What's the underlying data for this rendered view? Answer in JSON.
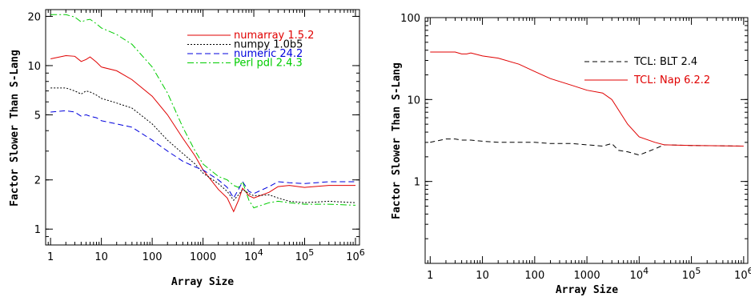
{
  "chart_data": [
    {
      "type": "line",
      "xlabel": "Array Size",
      "ylabel": "Factor Slower Than S-Lang",
      "xscale": "log",
      "yscale": "log",
      "xlim": [
        0.8,
        1200000
      ],
      "ylim": [
        0.8,
        22
      ],
      "x_ticks": [
        {
          "value": 1,
          "label": "1",
          "sup": ""
        },
        {
          "value": 10,
          "label": "10",
          "sup": ""
        },
        {
          "value": 100,
          "label": "100",
          "sup": ""
        },
        {
          "value": 1000,
          "label": "1000",
          "sup": ""
        },
        {
          "value": 10000,
          "label": "10",
          "sup": "4"
        },
        {
          "value": 100000,
          "label": "10",
          "sup": "5"
        },
        {
          "value": 1000000,
          "label": "10",
          "sup": "6"
        }
      ],
      "y_ticks": [
        {
          "value": 1,
          "label": "1"
        },
        {
          "value": 2,
          "label": "2"
        },
        {
          "value": 5,
          "label": "5"
        },
        {
          "value": 10,
          "label": "10"
        },
        {
          "value": 20,
          "label": "20"
        }
      ],
      "legend_position": "top-right",
      "series": [
        {
          "name": "numarray 1.5.2",
          "color": "#e00000",
          "dash": "",
          "x": [
            1,
            2,
            3,
            4,
            5,
            6,
            8,
            10,
            20,
            40,
            100,
            200,
            400,
            700,
            1000,
            2000,
            3000,
            4000,
            5000,
            6000,
            8000,
            10000,
            20000,
            30000,
            50000,
            100000,
            300000,
            1000000
          ],
          "y": [
            11,
            11.5,
            11.4,
            10.6,
            10.9,
            11.3,
            10.5,
            9.8,
            9.3,
            8.2,
            6.5,
            5.0,
            3.6,
            2.8,
            2.3,
            1.75,
            1.55,
            1.28,
            1.5,
            1.78,
            1.6,
            1.55,
            1.68,
            1.82,
            1.85,
            1.8,
            1.85,
            1.85
          ]
        },
        {
          "name": "numpy 1.0b5",
          "color": "#000000",
          "dash": "2,2",
          "x": [
            1,
            2,
            3,
            4,
            5,
            6,
            8,
            10,
            20,
            40,
            100,
            200,
            400,
            700,
            1000,
            2000,
            3000,
            4000,
            5000,
            6000,
            8000,
            10000,
            20000,
            30000,
            50000,
            100000,
            300000,
            1000000
          ],
          "y": [
            7.3,
            7.3,
            7.0,
            6.7,
            7.0,
            6.9,
            6.6,
            6.3,
            5.9,
            5.5,
            4.4,
            3.5,
            2.9,
            2.5,
            2.2,
            1.9,
            1.7,
            1.5,
            1.62,
            1.75,
            1.65,
            1.6,
            1.62,
            1.55,
            1.48,
            1.45,
            1.48,
            1.45
          ]
        },
        {
          "name": "numeric 24.2",
          "color": "#0000dd",
          "dash": "7,4",
          "x": [
            1,
            2,
            3,
            4,
            5,
            6,
            8,
            10,
            20,
            40,
            100,
            200,
            400,
            700,
            1000,
            2000,
            3000,
            4000,
            5000,
            6000,
            8000,
            10000,
            20000,
            30000,
            50000,
            100000,
            300000,
            1000000
          ],
          "y": [
            5.2,
            5.3,
            5.2,
            4.9,
            5.0,
            4.9,
            4.8,
            4.6,
            4.4,
            4.2,
            3.5,
            3.0,
            2.6,
            2.4,
            2.3,
            2.0,
            1.8,
            1.55,
            1.75,
            1.95,
            1.7,
            1.65,
            1.82,
            1.95,
            1.92,
            1.9,
            1.95,
            1.95
          ]
        },
        {
          "name": "Perl pdl 2.4.3",
          "color": "#00cc00",
          "dash": "8,3,2,3",
          "x": [
            1,
            2,
            3,
            4,
            5,
            6,
            8,
            10,
            20,
            40,
            100,
            200,
            400,
            700,
            1000,
            2000,
            3000,
            4000,
            5000,
            6000,
            8000,
            10000,
            20000,
            30000,
            50000,
            100000,
            300000,
            1000000
          ],
          "y": [
            20.5,
            20.5,
            19.8,
            18.5,
            19.0,
            19.2,
            18.0,
            17.0,
            15.5,
            13.5,
            9.8,
            6.8,
            4.2,
            3.0,
            2.5,
            2.1,
            2.0,
            1.85,
            1.8,
            1.95,
            1.5,
            1.35,
            1.45,
            1.48,
            1.45,
            1.42,
            1.42,
            1.4
          ]
        }
      ]
    },
    {
      "type": "line",
      "xlabel": "Array Size",
      "ylabel": "Factor Slower Than S-Lang",
      "xscale": "log",
      "yscale": "log",
      "xlim": [
        0.8,
        1200000
      ],
      "ylim": [
        0.1,
        100
      ],
      "x_ticks": [
        {
          "value": 1,
          "label": "1",
          "sup": ""
        },
        {
          "value": 10,
          "label": "10",
          "sup": ""
        },
        {
          "value": 100,
          "label": "100",
          "sup": ""
        },
        {
          "value": 1000,
          "label": "1000",
          "sup": ""
        },
        {
          "value": 10000,
          "label": "10",
          "sup": "4"
        },
        {
          "value": 100000,
          "label": "10",
          "sup": "5"
        },
        {
          "value": 1000000,
          "label": "10",
          "sup": "6"
        }
      ],
      "y_ticks": [
        {
          "value": 1,
          "label": "1"
        },
        {
          "value": 10,
          "label": "10"
        },
        {
          "value": 100,
          "label": "100"
        }
      ],
      "legend_position": "top-right",
      "series": [
        {
          "name": "TCL:  BLT 2.4",
          "color": "#000000",
          "dash": "6,4",
          "x": [
            1,
            2,
            3,
            4,
            5,
            6,
            10,
            20,
            50,
            100,
            200,
            500,
            1000,
            2000,
            3000,
            4000,
            6000,
            10000,
            20000,
            30000,
            100000,
            1000000
          ],
          "y": [
            3.0,
            3.3,
            3.3,
            3.2,
            3.2,
            3.2,
            3.1,
            3.0,
            3.0,
            3.0,
            2.9,
            2.9,
            2.8,
            2.7,
            2.9,
            2.4,
            2.3,
            2.1,
            2.5,
            2.8,
            2.75,
            2.7
          ]
        },
        {
          "name": "TCL:  Nap 6.2.2",
          "color": "#e00000",
          "dash": "",
          "x": [
            1,
            2,
            3,
            4,
            5,
            6,
            10,
            20,
            50,
            100,
            200,
            500,
            1000,
            2000,
            3000,
            4000,
            6000,
            10000,
            20000,
            30000,
            100000,
            1000000
          ],
          "y": [
            38,
            38,
            38,
            36,
            36,
            37,
            34,
            32,
            27,
            22,
            18,
            15,
            13,
            12,
            10,
            7.5,
            5.0,
            3.5,
            3.0,
            2.8,
            2.75,
            2.7
          ]
        }
      ]
    }
  ]
}
